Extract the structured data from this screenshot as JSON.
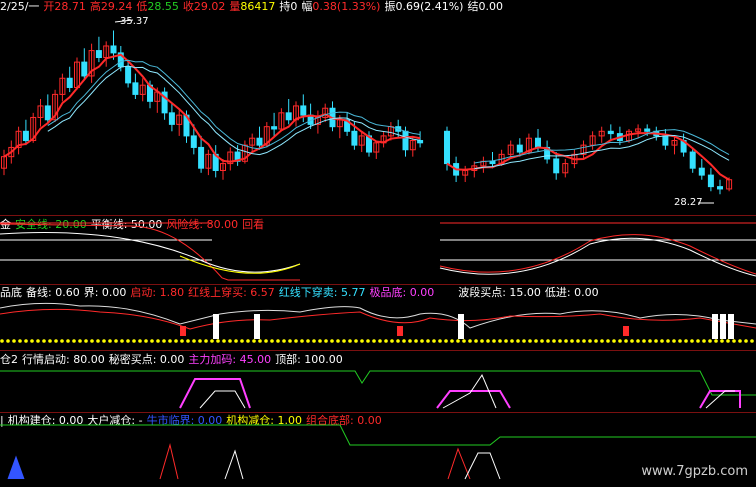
{
  "colors": {
    "up": "#ff2a2a",
    "down": "#34e0ff",
    "white": "#ffffff",
    "yellow": "#ffff00",
    "green": "#22cc22",
    "magenta": "#ff40ff",
    "blue": "#3355ff",
    "orange": "#ff9900"
  },
  "header": {
    "date": "2/25/一",
    "open_label": "开",
    "open": "28.71",
    "high_label": "高",
    "high": "29.24",
    "low_label": "低",
    "low": "28.55",
    "close_label": "收",
    "close": "29.02",
    "vol_label": "量",
    "vol": "86417",
    "hold_label": "持",
    "hold": "0",
    "chg_label": "幅",
    "chg": "0.38(1.33%)",
    "amp_label": "振",
    "amp": "0.69(2.41%)",
    "settle_label": "结",
    "settle": "0.00"
  },
  "price": {
    "high_mark": "35.37",
    "low_mark": "28.27"
  },
  "ind1": {
    "prefix": "金",
    "safe": "安全线: 20.00",
    "balance": "平衡线: 50.00",
    "risk": "风险线: 80.00",
    "extra": "回看"
  },
  "ind2": {
    "prefix": "品底",
    "spare": "备线: 0.60",
    "bound": "界: 0.00",
    "start": "启动: 1.80",
    "up": "红线上穿买: 6.57",
    "down": "红线下穿卖: 5.77",
    "extreme": "极品底: 0.00",
    "wave": "波段买点: 15.00",
    "low": "低进: 0.00",
    "jin": "进",
    "mai": "卖"
  },
  "ind3": {
    "prefix": "仓2",
    "start": "行情启动: 80.00",
    "secret": "秘密买点: 0.00",
    "main": "主力加码: 45.00",
    "top": "顶部: 100.00"
  },
  "ind4": {
    "prefix": "|",
    "inst": "机构建仓: 0.00",
    "big": "大户减仓: -",
    "bull": "牛市临界: 0.00",
    "inst_red": "机构减仓: 1.00",
    "combo": "组合底部: 0.00"
  },
  "watermark": "www.7gpzb.com",
  "candles": [
    [
      29.4,
      30.2,
      29.1,
      29.9
    ],
    [
      29.9,
      30.6,
      29.6,
      30.3
    ],
    [
      30.3,
      31.2,
      30.0,
      31.0
    ],
    [
      31.0,
      31.5,
      30.4,
      30.6
    ],
    [
      30.6,
      31.8,
      30.5,
      31.6
    ],
    [
      31.6,
      32.4,
      31.2,
      32.1
    ],
    [
      32.1,
      32.6,
      31.3,
      31.5
    ],
    [
      31.5,
      32.8,
      31.4,
      32.6
    ],
    [
      32.6,
      33.5,
      32.3,
      33.3
    ],
    [
      33.3,
      33.8,
      32.7,
      32.9
    ],
    [
      32.9,
      34.2,
      32.8,
      34.0
    ],
    [
      34.0,
      34.6,
      33.2,
      33.4
    ],
    [
      33.4,
      34.8,
      33.1,
      34.5
    ],
    [
      34.5,
      35.1,
      34.0,
      34.2
    ],
    [
      34.2,
      34.9,
      33.8,
      34.7
    ],
    [
      34.7,
      35.37,
      34.1,
      34.4
    ],
    [
      34.4,
      34.7,
      33.6,
      33.8
    ],
    [
      33.8,
      34.1,
      32.9,
      33.1
    ],
    [
      33.1,
      33.5,
      32.4,
      32.6
    ],
    [
      32.6,
      33.3,
      32.3,
      33.0
    ],
    [
      33.0,
      33.2,
      32.0,
      32.3
    ],
    [
      32.3,
      32.9,
      31.8,
      32.7
    ],
    [
      32.7,
      32.9,
      31.5,
      31.8
    ],
    [
      31.8,
      32.2,
      31.0,
      31.3
    ],
    [
      31.3,
      31.9,
      30.8,
      31.7
    ],
    [
      31.7,
      31.9,
      30.5,
      30.8
    ],
    [
      30.8,
      31.3,
      30.0,
      30.3
    ],
    [
      30.3,
      30.8,
      29.2,
      29.4
    ],
    [
      29.4,
      30.2,
      29.1,
      30.0
    ],
    [
      30.0,
      30.4,
      29.0,
      29.3
    ],
    [
      29.3,
      29.8,
      28.9,
      29.6
    ],
    [
      29.6,
      30.3,
      29.3,
      30.1
    ],
    [
      30.1,
      30.4,
      29.5,
      29.7
    ],
    [
      29.7,
      30.6,
      29.6,
      30.4
    ],
    [
      30.4,
      30.9,
      30.1,
      30.7
    ],
    [
      30.7,
      31.2,
      30.2,
      30.4
    ],
    [
      30.4,
      31.4,
      30.3,
      31.2
    ],
    [
      31.2,
      31.8,
      30.8,
      31.1
    ],
    [
      31.1,
      32.0,
      31.0,
      31.8
    ],
    [
      31.8,
      32.4,
      31.3,
      31.5
    ],
    [
      31.5,
      32.3,
      31.2,
      32.1
    ],
    [
      32.1,
      32.6,
      31.4,
      31.7
    ],
    [
      31.7,
      32.2,
      31.1,
      31.3
    ],
    [
      31.3,
      31.9,
      30.9,
      31.6
    ],
    [
      31.6,
      32.2,
      31.4,
      32.0
    ],
    [
      32.0,
      32.3,
      31.0,
      31.2
    ],
    [
      31.2,
      31.7,
      30.7,
      31.5
    ],
    [
      31.5,
      31.8,
      30.8,
      31.0
    ],
    [
      31.0,
      31.4,
      30.2,
      30.4
    ],
    [
      30.4,
      31.0,
      30.1,
      30.8
    ],
    [
      30.8,
      31.0,
      29.9,
      30.1
    ],
    [
      30.1,
      30.6,
      29.8,
      30.5
    ],
    [
      30.5,
      31.0,
      30.3,
      30.8
    ],
    [
      30.8,
      31.4,
      30.6,
      31.2
    ],
    [
      31.2,
      31.5,
      30.7,
      31.0
    ],
    [
      31.0,
      31.2,
      29.9,
      30.2
    ],
    [
      30.2,
      30.8,
      29.9,
      30.6
    ],
    [
      30.6,
      31.0,
      30.3,
      30.5
    ]
  ],
  "candles2": [
    [
      31.0,
      31.2,
      29.3,
      29.6
    ],
    [
      29.6,
      29.9,
      28.8,
      29.1
    ],
    [
      29.1,
      29.5,
      28.8,
      29.3
    ],
    [
      29.3,
      29.7,
      29.0,
      29.5
    ],
    [
      29.5,
      29.9,
      29.2,
      29.7
    ],
    [
      29.7,
      30.1,
      29.4,
      29.6
    ],
    [
      29.6,
      30.2,
      29.5,
      30.0
    ],
    [
      30.0,
      30.6,
      29.8,
      30.4
    ],
    [
      30.4,
      30.7,
      29.9,
      30.1
    ],
    [
      30.1,
      30.9,
      30.0,
      30.7
    ],
    [
      30.7,
      31.1,
      30.1,
      30.3
    ],
    [
      30.3,
      30.6,
      29.6,
      29.8
    ],
    [
      29.8,
      30.1,
      28.9,
      29.2
    ],
    [
      29.2,
      29.8,
      29.0,
      29.6
    ],
    [
      29.6,
      30.2,
      29.4,
      30.0
    ],
    [
      30.0,
      30.6,
      29.8,
      30.4
    ],
    [
      30.4,
      31.0,
      30.2,
      30.8
    ],
    [
      30.8,
      31.2,
      30.5,
      31.0
    ],
    [
      31.0,
      31.3,
      30.6,
      30.9
    ],
    [
      30.9,
      31.2,
      30.4,
      30.6
    ],
    [
      30.6,
      31.1,
      30.5,
      31.0
    ],
    [
      31.0,
      31.3,
      30.7,
      31.1
    ],
    [
      31.1,
      31.3,
      30.8,
      31.0
    ],
    [
      31.0,
      31.2,
      30.6,
      30.8
    ],
    [
      30.8,
      31.1,
      30.2,
      30.4
    ],
    [
      30.4,
      30.8,
      30.0,
      30.6
    ],
    [
      30.6,
      30.9,
      29.9,
      30.1
    ],
    [
      30.1,
      30.3,
      29.2,
      29.4
    ],
    [
      29.4,
      29.8,
      28.9,
      29.1
    ],
    [
      29.1,
      29.4,
      28.4,
      28.6
    ],
    [
      28.6,
      28.9,
      28.27,
      28.5
    ],
    [
      28.5,
      29.0,
      28.4,
      28.9
    ]
  ]
}
